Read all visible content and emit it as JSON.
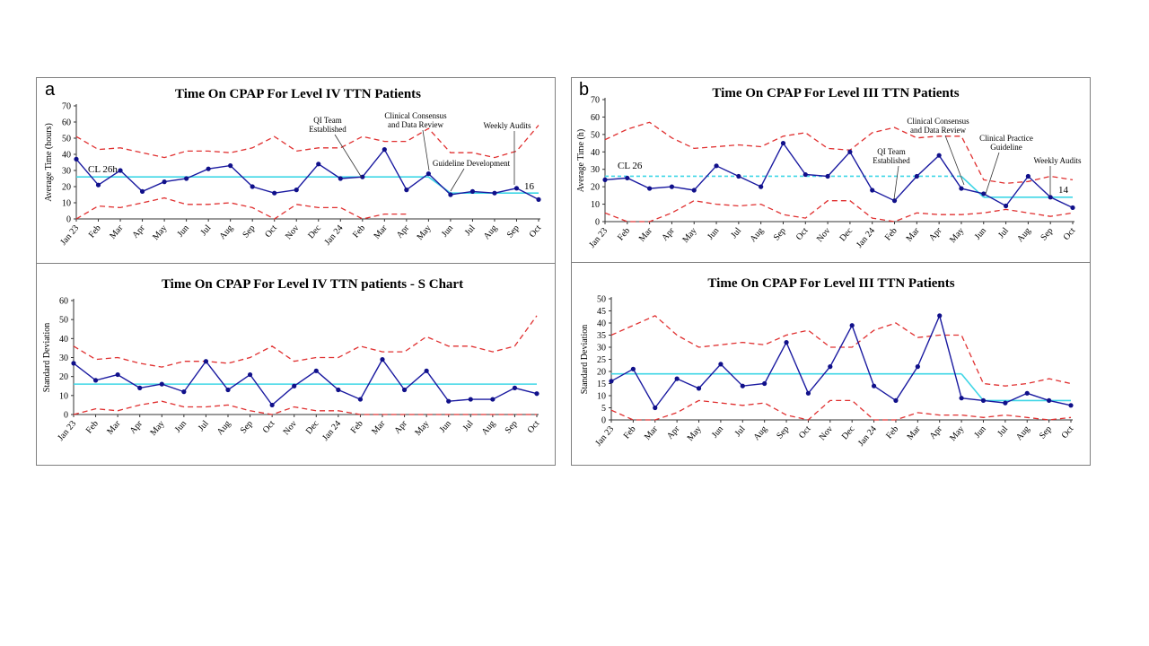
{
  "panel_letters": {
    "a": "a",
    "b": "b"
  },
  "chart_data": [
    {
      "id": "a_top",
      "type": "line",
      "title": "Time On CPAP For Level IV TTN Patients",
      "ylabel": "Average Time (hours)",
      "ylim": [
        0,
        70
      ],
      "yticks": [
        0,
        10,
        20,
        30,
        40,
        50,
        60,
        70
      ],
      "categories": [
        "Jan 23",
        "Feb",
        "Mar",
        "Apr",
        "May",
        "Jun",
        "Jul",
        "Aug",
        "Sep",
        "Oct",
        "Nov",
        "Dec",
        "Jan 24",
        "Feb",
        "Mar",
        "Apr",
        "May",
        "Jun",
        "Jul",
        "Aug",
        "Sep",
        "Oct"
      ],
      "values": [
        37,
        21,
        30,
        17,
        23,
        25,
        31,
        33,
        20,
        16,
        18,
        34,
        25,
        26,
        43,
        18,
        28,
        15,
        17,
        16,
        19,
        12
      ],
      "ucl": [
        51,
        43,
        44,
        41,
        38,
        42,
        42,
        41,
        44,
        51,
        42,
        44,
        44,
        51,
        48,
        48,
        56,
        41,
        41,
        38,
        42,
        58
      ],
      "lcl": [
        0,
        8,
        7,
        10,
        13,
        9,
        9,
        10,
        7,
        0,
        9,
        7,
        7,
        0,
        3,
        3,
        null,
        null,
        null,
        null,
        null,
        null
      ],
      "center_lines": [
        {
          "from": 0,
          "to": 16,
          "y": 26,
          "style": "solid"
        },
        {
          "from": 17,
          "to": 21,
          "y": 16,
          "style": "solid"
        }
      ],
      "center_connectors": [
        {
          "from": 16,
          "to": 17
        }
      ],
      "cl_labels": [
        "CL 26h",
        "16"
      ],
      "annotations": [
        {
          "lines": [
            "QI Team",
            "Established"
          ],
          "target": 13
        },
        {
          "lines": [
            "Clinical Consensus",
            "and Data Review"
          ],
          "target": 16
        },
        {
          "lines": [
            "Guideline Development"
          ],
          "target": 17
        },
        {
          "lines": [
            "Weekly Audits"
          ],
          "target": 20
        }
      ]
    },
    {
      "id": "a_bottom",
      "type": "line",
      "title": "Time On CPAP For Level IV TTN patients - S Chart",
      "ylabel": "Standard Deviation",
      "ylim": [
        0,
        60
      ],
      "yticks": [
        0,
        10,
        20,
        30,
        40,
        50,
        60
      ],
      "categories": [
        "Jan 23",
        "Feb",
        "Mar",
        "Apr",
        "May",
        "Jun",
        "Jul",
        "Aug",
        "Sep",
        "Oct",
        "Nov",
        "Dec",
        "Jan 24",
        "Feb",
        "Mar",
        "Apr",
        "May",
        "Jun",
        "Jul",
        "Aug",
        "Sep",
        "Oct"
      ],
      "values": [
        27,
        18,
        21,
        14,
        16,
        12,
        28,
        13,
        21,
        5,
        15,
        23,
        13,
        8,
        29,
        13,
        23,
        7,
        8,
        8,
        14,
        11
      ],
      "ucl": [
        36,
        29,
        30,
        27,
        25,
        28,
        28,
        27,
        30,
        36,
        28,
        30,
        30,
        36,
        33,
        33,
        41,
        36,
        36,
        33,
        36,
        52
      ],
      "lcl": [
        0,
        3,
        2,
        5,
        7,
        4,
        4,
        5,
        2,
        0,
        4,
        2,
        2,
        0,
        0,
        0,
        0,
        0,
        0,
        0,
        0,
        0
      ],
      "center_lines": [
        {
          "from": 0,
          "to": 21,
          "y": 16,
          "style": "solid"
        }
      ],
      "center_connectors": [],
      "cl_labels": [],
      "annotations": []
    },
    {
      "id": "b_top",
      "type": "line",
      "title": "Time On CPAP For Level III TTN Patients",
      "ylabel": "Average Time (h)",
      "ylim": [
        0,
        70
      ],
      "yticks": [
        0,
        10,
        20,
        30,
        40,
        50,
        60,
        70
      ],
      "categories": [
        "Jan 23",
        "Feb",
        "Mar",
        "Apr",
        "May",
        "Jun",
        "Jul",
        "Aug",
        "Sep",
        "Oct",
        "Nov",
        "Dec",
        "Jan 24",
        "Feb",
        "Mar",
        "Apr",
        "May",
        "Jun",
        "Jul",
        "Aug",
        "Sep",
        "Oct"
      ],
      "values": [
        24,
        25,
        19,
        20,
        18,
        32,
        26,
        20,
        45,
        27,
        26,
        40,
        18,
        12,
        26,
        38,
        19,
        16,
        9,
        26,
        14,
        8
      ],
      "ucl": [
        47,
        53,
        57,
        48,
        42,
        43,
        44,
        43,
        49,
        51,
        42,
        41,
        51,
        54,
        48,
        49,
        49,
        24,
        22,
        23,
        26,
        24
      ],
      "lcl": [
        5,
        0,
        0,
        5,
        12,
        10,
        9,
        10,
        4,
        2,
        12,
        12,
        2,
        0,
        5,
        4,
        4,
        5,
        7,
        5,
        3,
        5
      ],
      "center_lines": [
        {
          "from": 0,
          "to": 16,
          "y": 26,
          "style": "dashed"
        },
        {
          "from": 17,
          "to": 21,
          "y": 14,
          "style": "solid"
        }
      ],
      "center_connectors": [
        {
          "from": 16,
          "to": 17
        }
      ],
      "cl_labels": [
        "CL 26",
        "14"
      ],
      "annotations": [
        {
          "lines": [
            "QI Team",
            "Established"
          ],
          "target": 13
        },
        {
          "lines": [
            "Clinical Consensus",
            "and Data Review"
          ],
          "target": 16
        },
        {
          "lines": [
            "Clinical Practice",
            "Guideline"
          ],
          "target": 17
        },
        {
          "lines": [
            "Weekly Audits"
          ],
          "target": 20
        }
      ]
    },
    {
      "id": "b_bottom",
      "type": "line",
      "title": "Time On CPAP For Level III TTN Patients",
      "ylabel": "Standard Deviation",
      "ylim": [
        0,
        50
      ],
      "yticks": [
        0,
        5,
        10,
        15,
        20,
        25,
        30,
        35,
        40,
        45,
        50
      ],
      "categories": [
        "Jan 23",
        "Feb",
        "Mar",
        "Apr",
        "May",
        "Jun",
        "Jul",
        "Aug",
        "Sep",
        "Oct",
        "Nov",
        "Dec",
        "Jan 24",
        "Feb",
        "Mar",
        "Apr",
        "May",
        "Jun",
        "Jul",
        "Aug",
        "Sep",
        "Oct"
      ],
      "values": [
        16,
        21,
        5,
        17,
        13,
        23,
        14,
        15,
        32,
        11,
        22,
        39,
        14,
        8,
        22,
        43,
        9,
        8,
        7,
        11,
        8,
        6
      ],
      "ucl": [
        35,
        39,
        43,
        35,
        30,
        31,
        32,
        31,
        35,
        37,
        30,
        30,
        37,
        40,
        34,
        35,
        35,
        15,
        14,
        15,
        17,
        15
      ],
      "lcl": [
        4,
        0,
        0,
        3,
        8,
        7,
        6,
        7,
        2,
        0,
        8,
        8,
        0,
        0,
        3,
        2,
        2,
        1,
        2,
        1,
        0,
        1
      ],
      "center_lines": [
        {
          "from": 0,
          "to": 16,
          "y": 19,
          "style": "solid"
        },
        {
          "from": 17,
          "to": 21,
          "y": 8,
          "style": "solid"
        }
      ],
      "center_connectors": [
        {
          "from": 16,
          "to": 17
        }
      ],
      "cl_labels": [],
      "annotations": []
    }
  ]
}
